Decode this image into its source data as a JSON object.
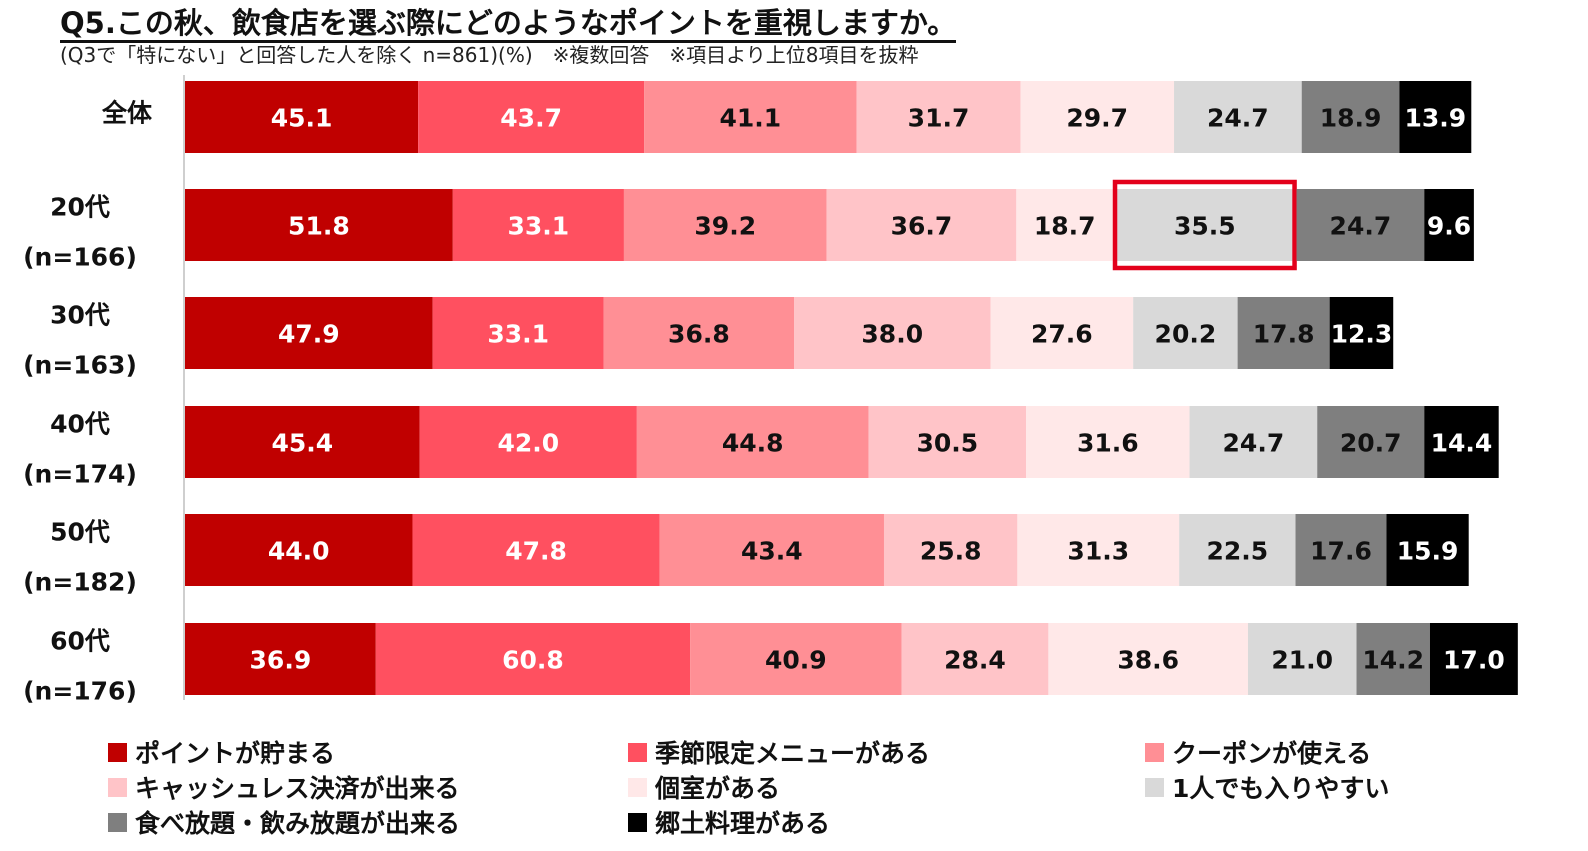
{
  "title": "Q5.この秋、飲食店を選ぶ際にどのようなポイントを重視しますか。",
  "subtitle": "(Q3で「特にない」と回答した人を除く n=861)(%)　※複数回答　※項目より上位8項目を抜粋",
  "chart_data": {
    "type": "bar",
    "orientation": "horizontal",
    "stacked": true,
    "categories": [
      {
        "line1": "全体",
        "line2": ""
      },
      {
        "line1": "20代",
        "line2": "(n=166)"
      },
      {
        "line1": "30代",
        "line2": "(n=163)"
      },
      {
        "line1": "40代",
        "line2": "(n=174)"
      },
      {
        "line1": "50代",
        "line2": "(n=182)"
      },
      {
        "line1": "60代",
        "line2": "(n=176)"
      }
    ],
    "series": [
      {
        "name": "ポイントが貯まる",
        "color": "#c00000",
        "text_color": "#ffffff",
        "values": [
          "45.1",
          "51.8",
          "47.9",
          "45.4",
          "44.0",
          "36.9"
        ]
      },
      {
        "name": "季節限定メニューがある",
        "color": "#ff5060",
        "text_color": "#ffffff",
        "values": [
          "43.7",
          "33.1",
          "33.1",
          "42.0",
          "47.8",
          "60.8"
        ]
      },
      {
        "name": "クーポンが使える",
        "color": "#ff8f95",
        "text_color": "#111111",
        "values": [
          "41.1",
          "39.2",
          "36.8",
          "44.8",
          "43.4",
          "40.9"
        ]
      },
      {
        "name": "キャッシュレス決済が出来る",
        "color": "#ffc4c8",
        "text_color": "#111111",
        "values": [
          "31.7",
          "36.7",
          "38.0",
          "30.5",
          "25.8",
          "28.4"
        ]
      },
      {
        "name": "個室がある",
        "color": "#ffe8e8",
        "text_color": "#111111",
        "values": [
          "29.7",
          "18.7",
          "27.6",
          "31.6",
          "31.3",
          "38.6"
        ]
      },
      {
        "name": "1人でも入りやすい",
        "color": "#d9d9d9",
        "text_color": "#111111",
        "values": [
          "24.7",
          "35.5",
          "20.2",
          "24.7",
          "22.5",
          "21.0"
        ]
      },
      {
        "name": "食べ放題・飲み放題が出来る",
        "color": "#7f7f7f",
        "text_color": "#111111",
        "values": [
          "18.9",
          "24.7",
          "17.8",
          "20.7",
          "17.6",
          "14.2"
        ]
      },
      {
        "name": "郷土料理がある",
        "color": "#000000",
        "text_color": "#ffffff",
        "values": [
          "13.9",
          "9.6",
          "12.3",
          "14.4",
          "15.9",
          "17.0"
        ]
      }
    ],
    "highlight": {
      "category_index": 1,
      "series_index": 5,
      "color": "#e3001b"
    },
    "legend_position": "bottom",
    "grid": false
  }
}
